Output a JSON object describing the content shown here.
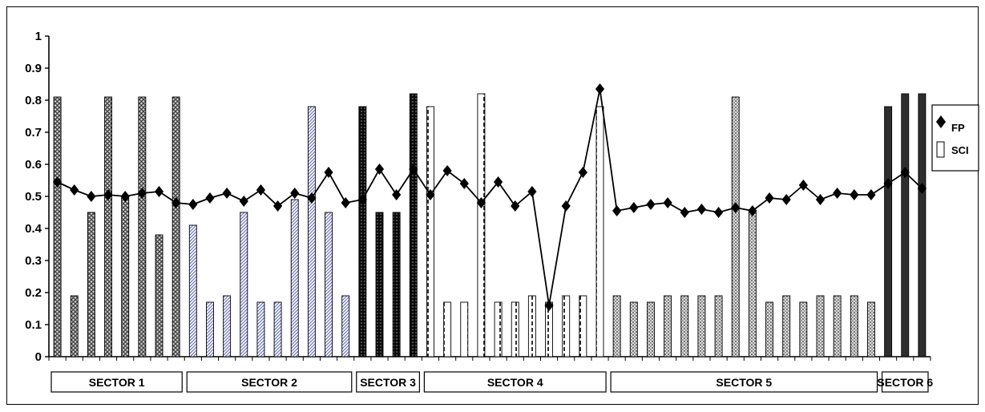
{
  "chart_data": {
    "type": "bar+line",
    "title": "",
    "xlabel": "",
    "ylabel": "",
    "ylim": [
      0,
      1
    ],
    "yticks": [
      "0",
      "0.1",
      "0.2",
      "0.3",
      "0.4",
      "0.5",
      "0.6",
      "0.7",
      "0.8",
      "0.9",
      "1"
    ],
    "grid": false,
    "legend": {
      "placement": "right",
      "entries": [
        {
          "label": "FP",
          "marker": "diamond"
        },
        {
          "label": "SCI",
          "marker": "bar"
        }
      ]
    },
    "sectors": [
      {
        "label": "SECTOR 1",
        "count": 8,
        "pattern": "crosshatch",
        "color": "#777777"
      },
      {
        "label": "SECTOR 2",
        "count": 10,
        "pattern": "diagonal",
        "color": "#8a90c8"
      },
      {
        "label": "SECTOR 3",
        "count": 4,
        "pattern": "dotted-dark",
        "color": "#111111"
      },
      {
        "label": "SECTOR 4",
        "count": 11,
        "pattern": "dashed-white",
        "color": "#000000"
      },
      {
        "label": "SECTOR 5",
        "count": 16,
        "pattern": "stipple-gray",
        "color": "#aaaaaa"
      },
      {
        "label": "SECTOR 6",
        "count": 3,
        "pattern": "solid-dark",
        "color": "#333333"
      }
    ],
    "series": [
      {
        "name": "SCI",
        "type": "bar",
        "values": [
          0.81,
          0.19,
          0.45,
          0.81,
          0.5,
          0.81,
          0.38,
          0.81,
          0.41,
          0.17,
          0.19,
          0.45,
          0.17,
          0.17,
          0.49,
          0.78,
          0.45,
          0.19,
          0.78,
          0.45,
          0.45,
          0.82,
          0.78,
          0.17,
          0.17,
          0.82,
          0.17,
          0.17,
          0.19,
          0.17,
          0.19,
          0.19,
          0.78,
          0.19,
          0.17,
          0.17,
          0.19,
          0.19,
          0.19,
          0.19,
          0.81,
          0.45,
          0.17,
          0.19,
          0.17,
          0.19,
          0.19,
          0.19,
          0.17,
          0.78,
          0.82,
          0.82
        ]
      },
      {
        "name": "FP",
        "type": "line",
        "values": [
          0.545,
          0.52,
          0.5,
          0.505,
          0.5,
          0.51,
          0.515,
          0.48,
          0.475,
          0.495,
          0.51,
          0.485,
          0.52,
          0.47,
          0.51,
          0.495,
          0.575,
          0.48,
          0.49,
          0.585,
          0.505,
          0.585,
          0.505,
          0.58,
          0.54,
          0.48,
          0.545,
          0.47,
          0.515,
          0.16,
          0.47,
          0.575,
          0.835,
          0.455,
          0.465,
          0.475,
          0.48,
          0.45,
          0.46,
          0.45,
          0.465,
          0.455,
          0.495,
          0.49,
          0.535,
          0.49,
          0.51,
          0.505,
          0.505,
          0.54,
          0.575,
          0.525
        ]
      }
    ]
  }
}
